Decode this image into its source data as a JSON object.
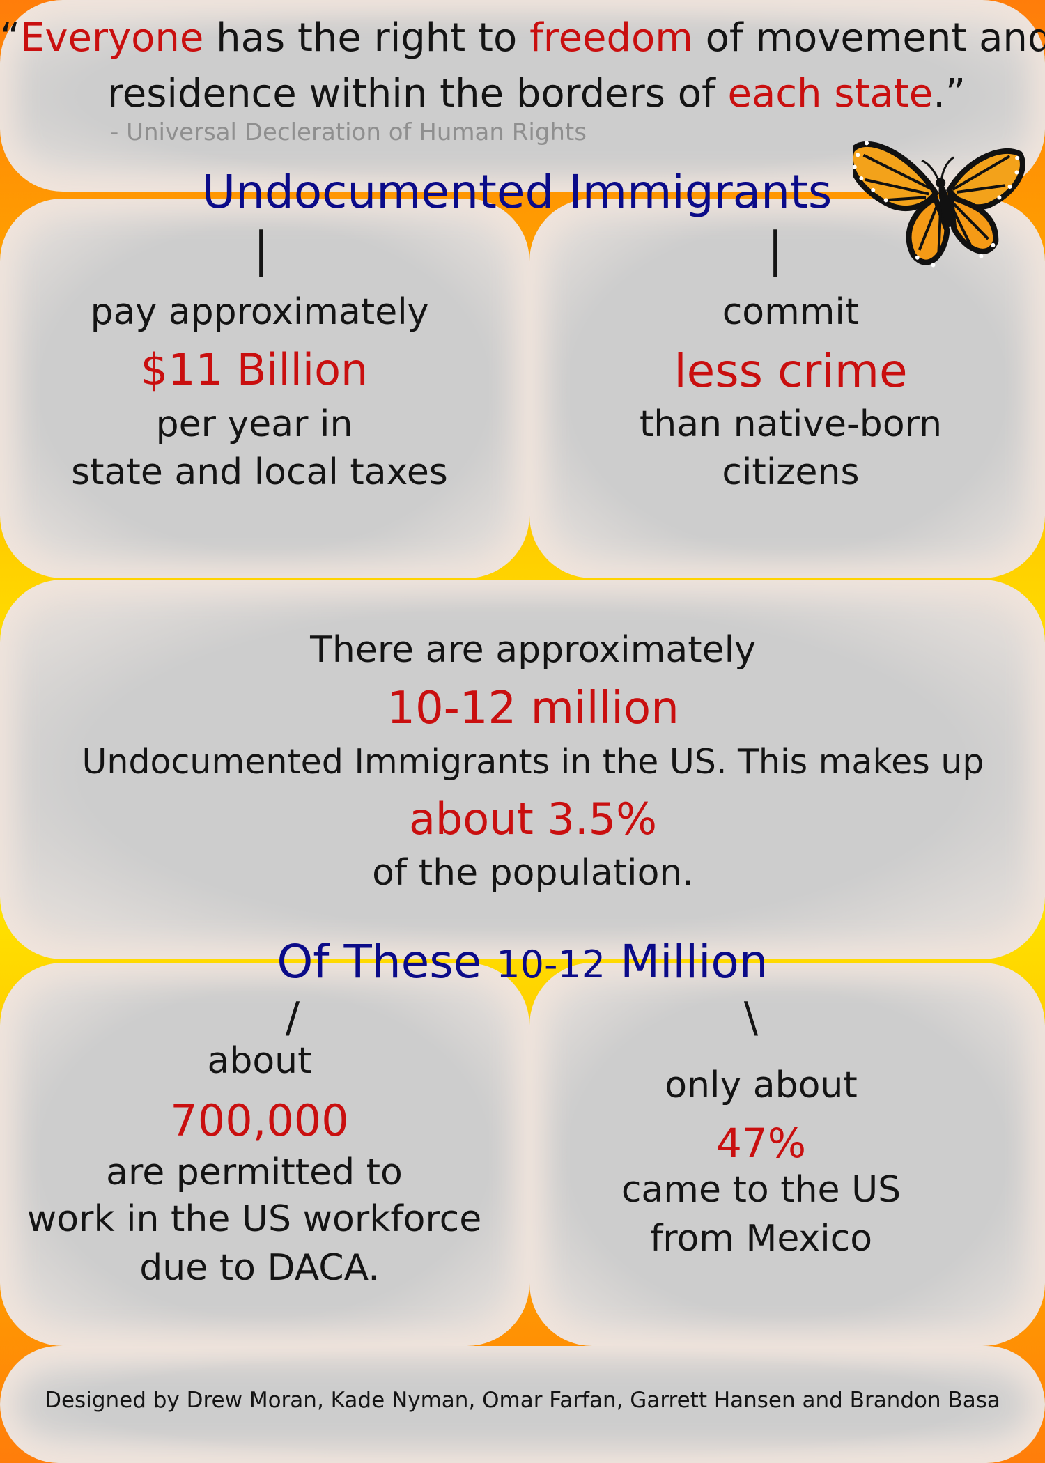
{
  "quote": {
    "open_quote": "“",
    "w_everyone": "Everyone",
    "seg1": " has the right to ",
    "w_freedom": "freedom",
    "seg2": " of movement and",
    "seg3": "residence within the borders of ",
    "w_each_state": "each state",
    "close": ".”",
    "attribution": "- Universal Decleration of Human Rights"
  },
  "section1": {
    "title": "Undocumented Immigrants",
    "left_branch": "|",
    "right_branch": "|",
    "left": {
      "line1": "pay approximately",
      "highlight": "$11 Billion",
      "line2": "per year in",
      "line3": "state and local taxes"
    },
    "right": {
      "line1": "commit",
      "highlight": "less crime",
      "line2": "than native-born",
      "line3": "citizens"
    }
  },
  "section2": {
    "line1": "There are approximately",
    "highlight1": "10-12 million",
    "line2": "Undocumented Immigrants in the US. This makes up",
    "highlight2": "about 3.5%",
    "line3": "of the population."
  },
  "section3": {
    "title_part1": "Of These ",
    "title_number": "10-12",
    "title_part2": " Million",
    "left_branch": "/",
    "right_branch": "\\",
    "left": {
      "line1": "about",
      "highlight": "700,000",
      "line2": "are permitted to",
      "line3": "work in the US workforce",
      "line4": "due to DACA."
    },
    "right": {
      "line1": "only about",
      "highlight": "47%",
      "line2": "came to the US",
      "line3": "from Mexico"
    }
  },
  "footer": {
    "credits": "Designed by Drew Moran, Kade Nyman, Omar Farfan, Garrett Hansen and Brandon Basa"
  },
  "colors": {
    "accent_red": "#c90f0f",
    "title_navy": "#0b0b88",
    "body_black": "#141414",
    "attribution_grey": "#8f8f8f",
    "background_orange": "#ff7d0a",
    "background_yellow": "#fff200"
  },
  "icons": {
    "butterfly": "monarch-butterfly-icon"
  }
}
